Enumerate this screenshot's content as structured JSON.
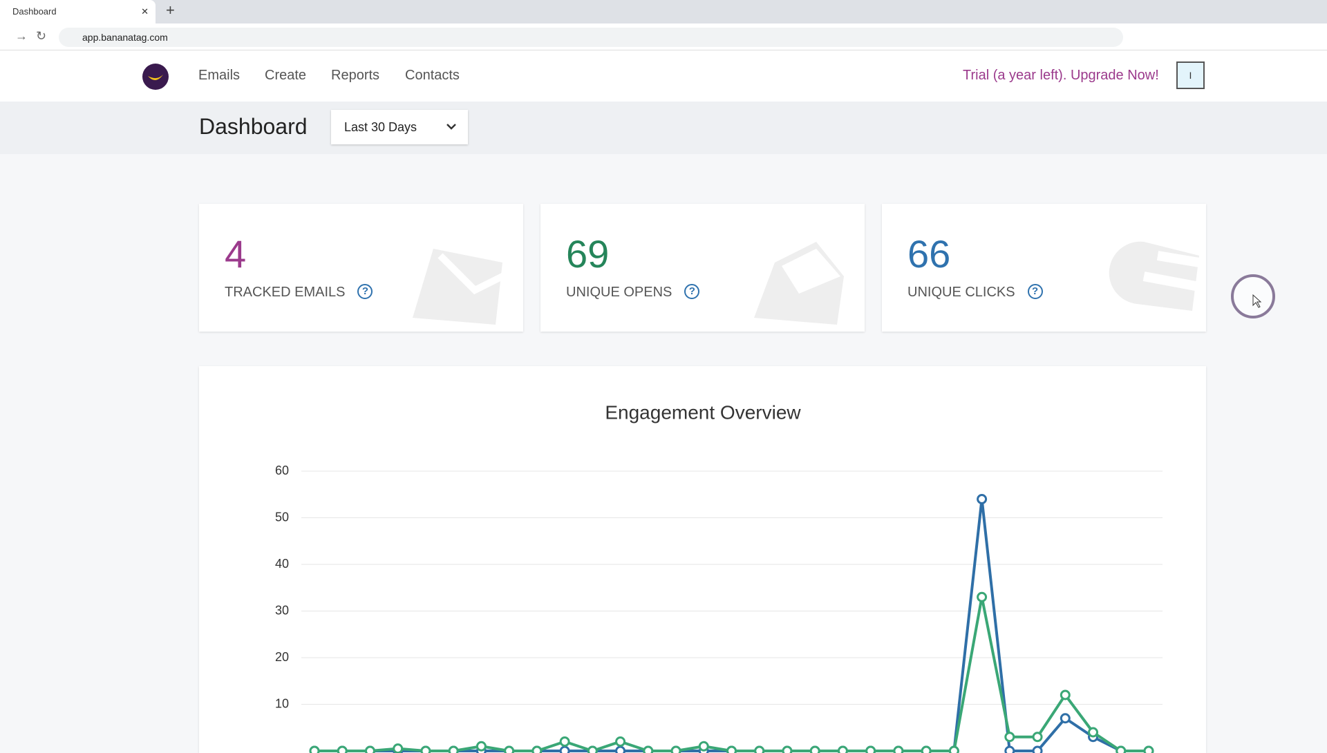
{
  "browser": {
    "tab_title": "Dashboard",
    "url": "app.bananatag.com"
  },
  "nav": {
    "links": [
      "Emails",
      "Create",
      "Reports",
      "Contacts"
    ],
    "upgrade": "Trial (a year left). Upgrade Now!",
    "user_initial": "I"
  },
  "header": {
    "title": "Dashboard",
    "range": "Last 30 Days"
  },
  "stats": [
    {
      "value": 4,
      "label": "TRACKED EMAILS",
      "color": "#9b3a8c"
    },
    {
      "value": 69,
      "label": "UNIQUE OPENS",
      "color": "#25855a"
    },
    {
      "value": 66,
      "label": "UNIQUE CLICKS",
      "color": "#2f72ae"
    }
  ],
  "chart_data": {
    "type": "line",
    "title": "Engagement Overview",
    "ylim": [
      0,
      60
    ],
    "yticks": [
      10,
      20,
      30,
      40,
      50,
      60
    ],
    "grid": true,
    "series": [
      {
        "color": "#2f6fa7",
        "values": [
          0,
          0,
          0,
          0,
          0,
          0,
          0,
          0,
          0,
          0,
          0,
          0,
          0,
          0,
          0,
          0,
          0,
          0,
          0,
          0,
          0,
          0,
          0,
          0,
          54,
          0,
          0,
          7,
          3,
          0,
          0
        ]
      },
      {
        "color": "#3aa776",
        "values": [
          0,
          0,
          0,
          0.5,
          0,
          0,
          1,
          0,
          0,
          2,
          0,
          2,
          0,
          0,
          1,
          0,
          0,
          0,
          0,
          0,
          0,
          0,
          0,
          0,
          33,
          3,
          3,
          12,
          4,
          0,
          0
        ]
      }
    ]
  }
}
